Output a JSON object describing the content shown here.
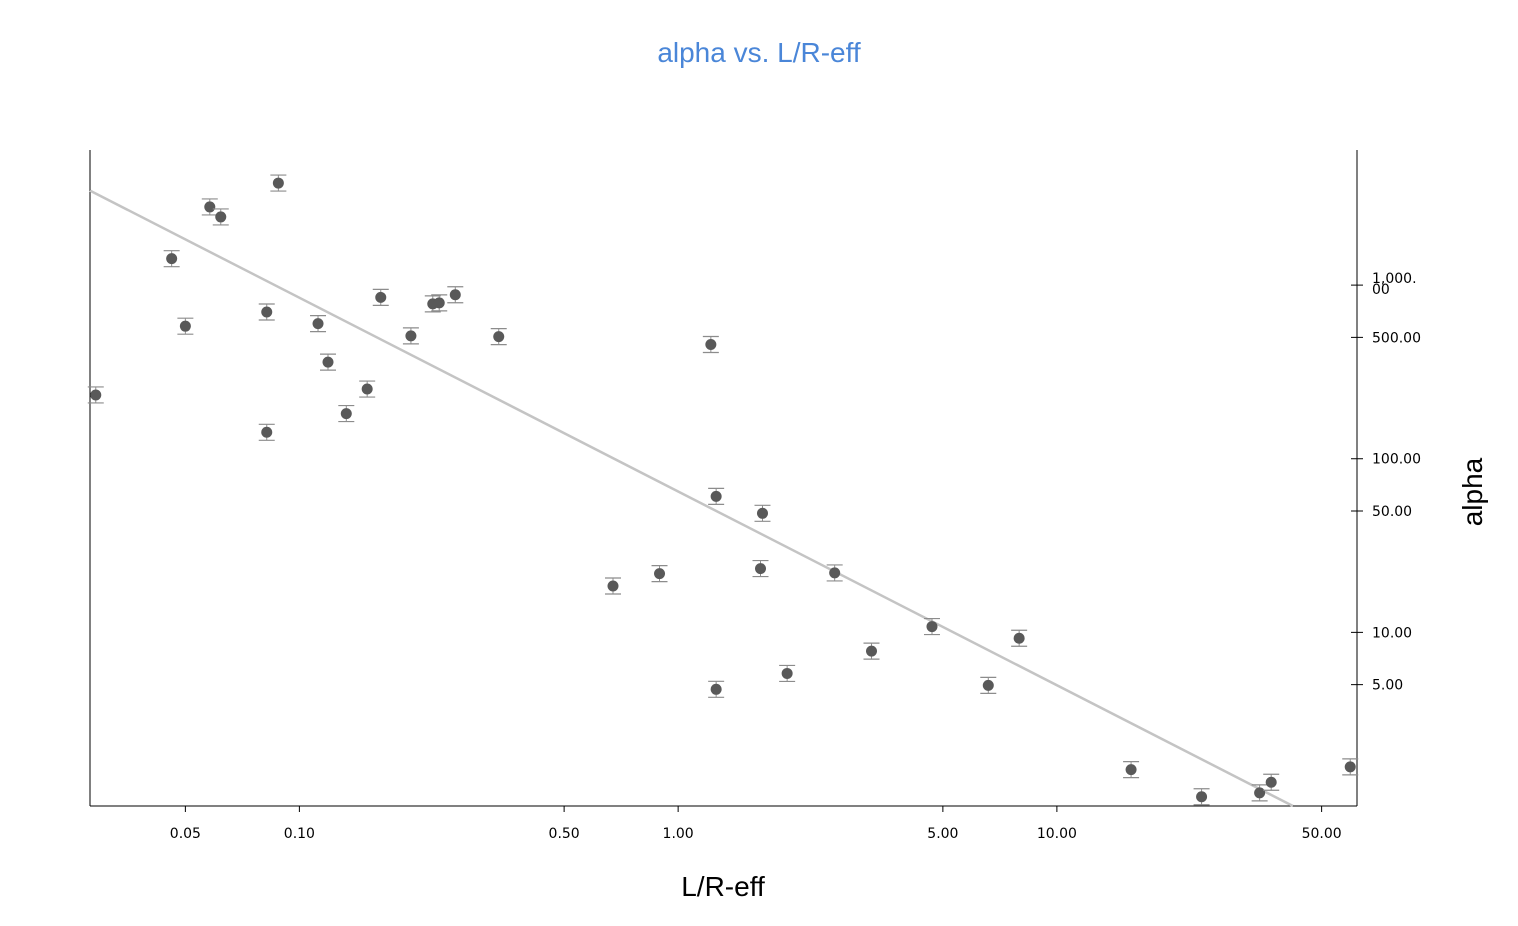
{
  "chart_data": {
    "type": "scatter",
    "title": "alpha vs. L/R-eff",
    "xlabel": "L/R-eff",
    "ylabel": "alpha",
    "x_scale": "log",
    "y_scale": "log",
    "xlim": [
      0.028,
      62
    ],
    "ylim": [
      1.0,
      6000
    ],
    "x_ticks": [
      {
        "value": 0.05,
        "label": "0.05"
      },
      {
        "value": 0.1,
        "label": "0.10"
      },
      {
        "value": 0.5,
        "label": "0.50"
      },
      {
        "value": 1,
        "label": "1.00"
      },
      {
        "value": 5,
        "label": "5.00"
      },
      {
        "value": 10,
        "label": "10.00"
      },
      {
        "value": 50,
        "label": "50.00"
      }
    ],
    "y_ticks": [
      {
        "value": 5,
        "label": "5.00"
      },
      {
        "value": 10,
        "label": "10.00"
      },
      {
        "value": 50,
        "label": "50.00"
      },
      {
        "value": 100,
        "label": "100.00"
      },
      {
        "value": 500,
        "label": "500.00"
      },
      {
        "value": 1000,
        "label": "1,000.\n00"
      }
    ],
    "y_axis_side": "right",
    "grid": false,
    "colors": {
      "title": "#4a86d8",
      "points": "#595959",
      "error_bars": "#8c8c8c",
      "fit_line": "#c4c4c4",
      "axes": "#000000"
    },
    "fit_line": {
      "x": [
        0.028,
        42
      ],
      "y": [
        3500,
        1.0
      ]
    },
    "points": [
      {
        "x": 0.029,
        "y": 233
      },
      {
        "x": 0.046,
        "y": 1420
      },
      {
        "x": 0.05,
        "y": 580
      },
      {
        "x": 0.058,
        "y": 2820
      },
      {
        "x": 0.062,
        "y": 2470
      },
      {
        "x": 0.082,
        "y": 700
      },
      {
        "x": 0.082,
        "y": 142
      },
      {
        "x": 0.088,
        "y": 3870
      },
      {
        "x": 0.112,
        "y": 600
      },
      {
        "x": 0.119,
        "y": 360
      },
      {
        "x": 0.133,
        "y": 182
      },
      {
        "x": 0.151,
        "y": 252
      },
      {
        "x": 0.164,
        "y": 850
      },
      {
        "x": 0.197,
        "y": 510
      },
      {
        "x": 0.225,
        "y": 780
      },
      {
        "x": 0.234,
        "y": 790
      },
      {
        "x": 0.258,
        "y": 880
      },
      {
        "x": 0.336,
        "y": 505
      },
      {
        "x": 0.673,
        "y": 18.5
      },
      {
        "x": 0.893,
        "y": 21.8
      },
      {
        "x": 1.22,
        "y": 455
      },
      {
        "x": 1.26,
        "y": 60.7
      },
      {
        "x": 1.26,
        "y": 4.7
      },
      {
        "x": 1.67,
        "y": 48.5
      },
      {
        "x": 1.65,
        "y": 23.3
      },
      {
        "x": 1.94,
        "y": 5.8
      },
      {
        "x": 2.59,
        "y": 22
      },
      {
        "x": 3.24,
        "y": 7.8
      },
      {
        "x": 4.68,
        "y": 10.8
      },
      {
        "x": 6.59,
        "y": 4.95
      },
      {
        "x": 7.95,
        "y": 9.25
      },
      {
        "x": 15.7,
        "y": 1.62
      },
      {
        "x": 24.1,
        "y": 1.13
      },
      {
        "x": 34.3,
        "y": 1.19
      },
      {
        "x": 36.8,
        "y": 1.37
      },
      {
        "x": 59.5,
        "y": 1.68
      }
    ]
  }
}
